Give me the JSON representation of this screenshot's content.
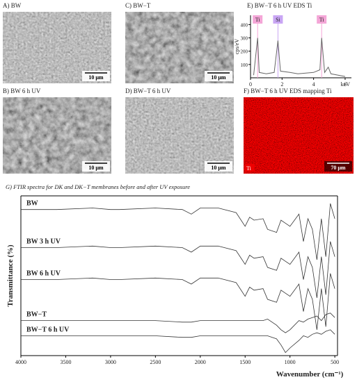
{
  "panels": [
    {
      "label": "A) BW",
      "scale": "10 μm"
    },
    {
      "label": "C) BW−T",
      "scale": "10 μm"
    },
    {
      "label": "B) BW 6 h UV",
      "scale": "10 μm"
    },
    {
      "label": "D) BW−T 6 h UV",
      "scale": "10 μm"
    },
    {
      "label": "F) BW−T 6 h UV EDS mapping Ti",
      "scale": "70 μm",
      "tag": "Ti"
    }
  ],
  "chart_data": [
    {
      "type": "line",
      "title": "E) BW−T 6 h UV EDS Ti",
      "x_label": "keV",
      "y_label": "cps/eV",
      "x": [
        0.2,
        0.45,
        0.55,
        1.0,
        1.5,
        1.74,
        1.9,
        2.5,
        3.0,
        4.0,
        4.4,
        4.51,
        4.7,
        4.93,
        5.1,
        6.0
      ],
      "series": [
        {
          "color": "#666666",
          "values": [
            20,
            300,
            40,
            30,
            40,
            280,
            50,
            40,
            30,
            40,
            60,
            300,
            40,
            80,
            30,
            10
          ]
        }
      ],
      "xlim": [
        0,
        6.4
      ],
      "ylim": [
        0,
        470
      ],
      "xticks": [
        0,
        2,
        4,
        6
      ],
      "yticks": [
        100,
        200,
        300,
        400
      ],
      "peak_labels": [
        {
          "label": "Ti",
          "x": 0.45,
          "color": "#f4a6d7"
        },
        {
          "label": "Si",
          "x": 1.74,
          "color": "#c9a6f4"
        },
        {
          "label": "Ti",
          "x": 4.51,
          "color": "#f4a6d7"
        }
      ]
    },
    {
      "type": "line",
      "title": "G) FTIR spectra for DK and DK−T membranes before and after UV exposure",
      "x_label": "Wavenumber (cm⁻¹)",
      "y_label": "Transmittance (%)",
      "x": [
        4000,
        3600,
        3200,
        3000,
        2900,
        2500,
        2200,
        2100,
        2000,
        1800,
        1600,
        1500,
        1450,
        1400,
        1300,
        1250,
        1150,
        1100,
        1050,
        1000,
        900,
        850,
        800,
        750,
        700,
        650,
        600,
        550,
        500
      ],
      "series": [
        {
          "name": "BW",
          "color": "#333333",
          "values": [
            91,
            91,
            92,
            91,
            91,
            92,
            91,
            88,
            92,
            92,
            89,
            80,
            86,
            84,
            85,
            78,
            76,
            84,
            82,
            80,
            88,
            70,
            85,
            78,
            58,
            85,
            60,
            95,
            85
          ]
        },
        {
          "name": "BW 3 h UV",
          "color": "#333333",
          "values": [
            66,
            66,
            67,
            66,
            66,
            67,
            66,
            63,
            67,
            67,
            64,
            55,
            61,
            59,
            60,
            53,
            51,
            59,
            57,
            55,
            63,
            45,
            60,
            53,
            33,
            60,
            35,
            70,
            60
          ]
        },
        {
          "name": "BW 6 h UV",
          "color": "#333333",
          "values": [
            45,
            45,
            46,
            45,
            45,
            46,
            45,
            42,
            46,
            46,
            43,
            34,
            40,
            38,
            39,
            32,
            30,
            38,
            36,
            34,
            42,
            24,
            39,
            32,
            12,
            39,
            14,
            49,
            39
          ]
        },
        {
          "name": "BW−T",
          "color": "#333333",
          "values": [
            18,
            18,
            18,
            18,
            18,
            18,
            17,
            17,
            18,
            18,
            18,
            18,
            18,
            18,
            18,
            19,
            15,
            12,
            10,
            12,
            18,
            17,
            19,
            20,
            21,
            18,
            22,
            23,
            20
          ]
        },
        {
          "name": "BW−T 6 h UV",
          "color": "#333333",
          "values": [
            8,
            8,
            8,
            8,
            8,
            8,
            7,
            7,
            8,
            8,
            8,
            8,
            8,
            8,
            8,
            8,
            6,
            2,
            -3,
            0,
            5,
            8,
            7,
            9,
            10,
            9,
            11,
            12,
            9
          ]
        }
      ],
      "xlim": [
        4000,
        470
      ],
      "ylim": [
        -5,
        100
      ],
      "xticks": [
        4000,
        3500,
        3000,
        2500,
        2000,
        1500,
        1000,
        500
      ]
    }
  ]
}
